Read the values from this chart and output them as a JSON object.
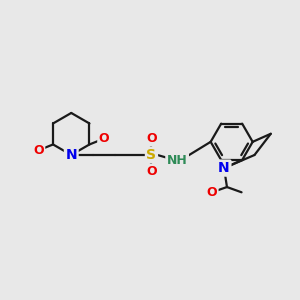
{
  "background_color": "#e8e8e8",
  "bond_color": "#1a1a1a",
  "bond_width": 1.6,
  "atom_colors": {
    "N": "#0000ee",
    "O": "#ee0000",
    "S": "#ccaa00",
    "NH": "#2e8b57",
    "C": "#1a1a1a"
  },
  "figsize": [
    3.0,
    3.0
  ],
  "dpi": 100
}
